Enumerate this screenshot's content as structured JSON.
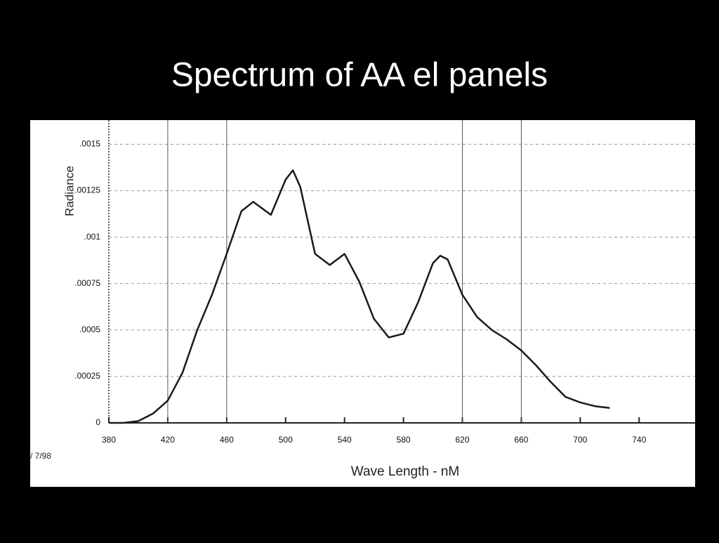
{
  "chart_data": {
    "type": "line",
    "title": "Spectrum of AA el panels",
    "x_label": "Wave Length - nM",
    "y_label": "Radiance",
    "annotation": "/ 7/98",
    "x": [
      380,
      390,
      400,
      410,
      420,
      430,
      440,
      450,
      460,
      470,
      478,
      490,
      500,
      505,
      510,
      520,
      530,
      540,
      550,
      560,
      570,
      580,
      590,
      600,
      605,
      610,
      620,
      630,
      640,
      650,
      660,
      670,
      680,
      690,
      700,
      710,
      720
    ],
    "series": [
      {
        "color": "#1a1a1a",
        "values": [
          0,
          0,
          1e-05,
          5e-05,
          0.00012,
          0.00027,
          0.0005,
          0.00069,
          0.00091,
          0.00114,
          0.00119,
          0.00112,
          0.00131,
          0.00136,
          0.00127,
          0.00091,
          0.00085,
          0.00091,
          0.00076,
          0.00056,
          0.00046,
          0.00048,
          0.00065,
          0.00086,
          0.0009,
          0.00088,
          0.00069,
          0.00057,
          0.0005,
          0.00045,
          0.00039,
          0.00031,
          0.00022,
          0.00014,
          0.00011,
          9e-05,
          8e-05
        ]
      }
    ],
    "xlim": [
      380,
      778
    ],
    "ylim": [
      0,
      0.00163
    ],
    "xticks": [
      380,
      420,
      460,
      500,
      540,
      580,
      620,
      660,
      700,
      740
    ],
    "yticks": [
      0,
      {
        "value": 0.00025,
        "label": ".00025"
      },
      {
        "value": 0.0005,
        "label": ".0005"
      },
      {
        "value": 0.00075,
        "label": ".00075"
      },
      {
        "value": 0.001,
        "label": ".001"
      },
      {
        "value": 0.00125,
        "label": ".00125"
      },
      {
        "value": 0.0015,
        "label": ".0015"
      }
    ],
    "x_reference_lines": [
      420,
      460,
      620,
      660
    ],
    "grid": true
  }
}
